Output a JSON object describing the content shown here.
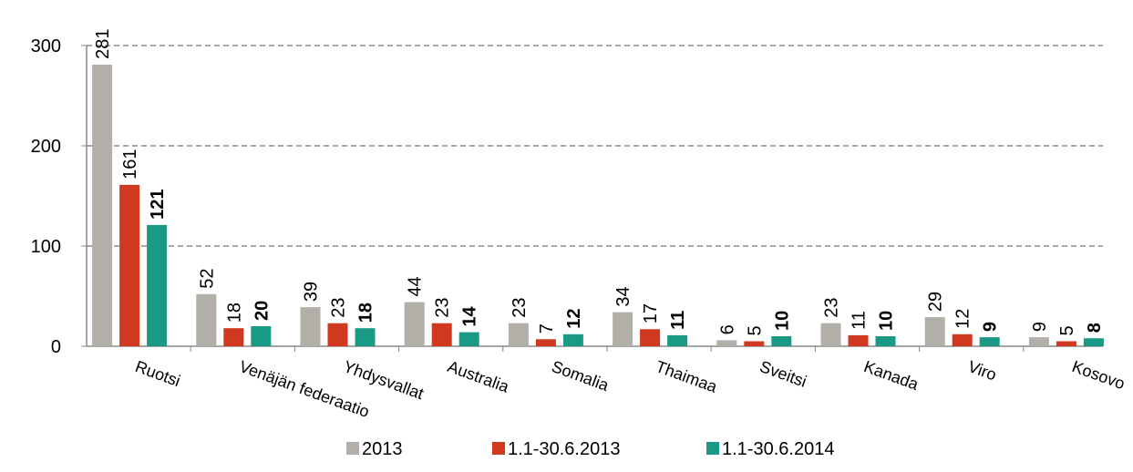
{
  "chart_data": {
    "type": "bar",
    "categories": [
      "Ruotsi",
      "Venäjän federaatio",
      "Yhdysvallat",
      "Australia",
      "Somalia",
      "Thaimaa",
      "Sveitsi",
      "Kanada",
      "Viro",
      "Kosovo"
    ],
    "series": [
      {
        "name": "2013",
        "color": "#b2aea8",
        "values": [
          281,
          52,
          39,
          44,
          23,
          34,
          6,
          23,
          29,
          9
        ]
      },
      {
        "name": "1.1-30.6.2013",
        "color": "#d0391f",
        "values": [
          161,
          18,
          23,
          23,
          7,
          17,
          5,
          11,
          12,
          5
        ]
      },
      {
        "name": "1.1-30.6.2014",
        "color": "#1a9a84",
        "values": [
          121,
          20,
          18,
          14,
          12,
          11,
          10,
          10,
          9,
          8
        ]
      }
    ],
    "ylim": [
      0,
      300
    ],
    "yticks": [
      0,
      100,
      200,
      300
    ],
    "grid": true,
    "legend": "bottom"
  }
}
